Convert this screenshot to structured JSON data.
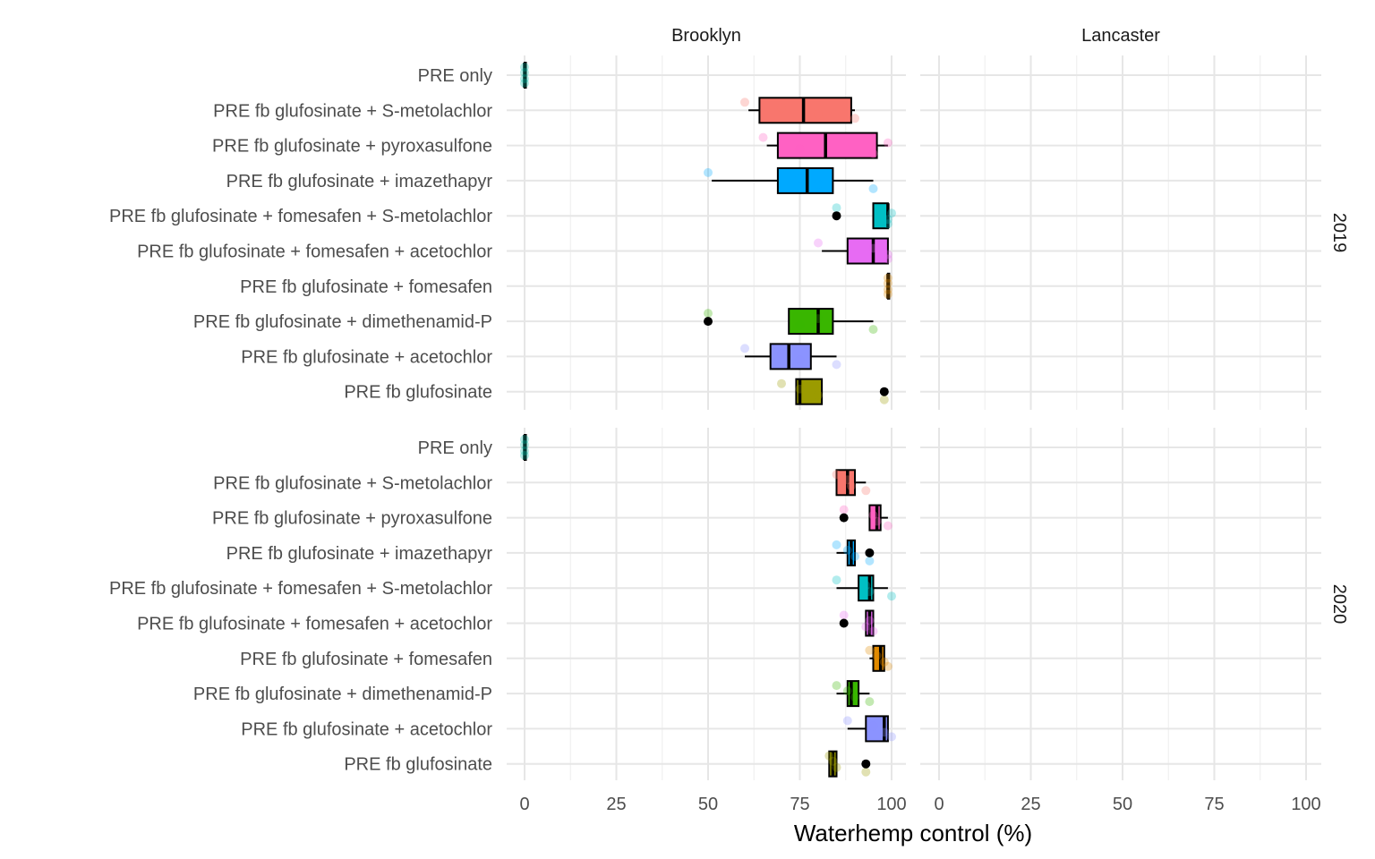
{
  "chart_data": {
    "type": "box",
    "xlabel": "Waterhemp control (%)",
    "xlim": [
      0,
      100
    ],
    "x_ticks": [
      0,
      25,
      50,
      75,
      100
    ],
    "facet_columns": [
      "Brooklyn",
      "Lancaster"
    ],
    "facet_rows": [
      "2019",
      "2020"
    ],
    "categories": [
      "PRE only",
      "PRE fb glufosinate + S-metolachlor",
      "PRE fb glufosinate + pyroxasulfone",
      "PRE fb glufosinate + imazethapyr",
      "PRE fb glufosinate + fomesafen + S-metolachlor",
      "PRE fb glufosinate + fomesafen + acetochlor",
      "PRE fb glufosinate + fomesafen",
      "PRE fb glufosinate + dimethenamid-P",
      "PRE fb glufosinate + acetochlor",
      "PRE fb glufosinate"
    ],
    "colors": {
      "PRE only": "#00C1A9",
      "PRE fb glufosinate + S-metolachlor": "#F8766D",
      "PRE fb glufosinate + pyroxasulfone": "#FF61C3",
      "PRE fb glufosinate + imazethapyr": "#00A9FF",
      "PRE fb glufosinate + fomesafen + S-metolachlor": "#00BFC4",
      "PRE fb glufosinate + fomesafen + acetochlor": "#E76BF3",
      "PRE fb glufosinate + fomesafen": "#E18A00",
      "PRE fb glufosinate + dimethenamid-P": "#39B600",
      "PRE fb glufosinate + acetochlor": "#8B93FF",
      "PRE fb glufosinate": "#9B9B00"
    },
    "panels": [
      {
        "location": "Brooklyn",
        "year": "2019",
        "boxes": [
          {
            "category": "PRE only",
            "min": 0,
            "q1": 0,
            "median": 0,
            "q3": 0,
            "max": 0,
            "outliers": [],
            "points": [
              0,
              0,
              0,
              0
            ]
          },
          {
            "category": "PRE fb glufosinate + S-metolachlor",
            "min": 61,
            "q1": 64,
            "median": 76,
            "q3": 89,
            "max": 90,
            "outliers": [],
            "points": [
              60,
              90,
              70,
              80
            ]
          },
          {
            "category": "PRE fb glufosinate + pyroxasulfone",
            "min": 66,
            "q1": 69,
            "median": 82,
            "q3": 96,
            "max": 99,
            "outliers": [],
            "points": [
              65,
              95,
              99,
              75
            ]
          },
          {
            "category": "PRE fb glufosinate + imazethapyr",
            "min": 51,
            "q1": 69,
            "median": 77,
            "q3": 84,
            "max": 95,
            "outliers": [],
            "points": [
              50,
              95,
              75,
              80
            ]
          },
          {
            "category": "PRE fb glufosinate + fomesafen + S-metolachlor",
            "min": 95,
            "q1": 95,
            "median": 99,
            "q3": 99,
            "max": 99,
            "outliers": [
              85
            ],
            "points": [
              85,
              99,
              100,
              99
            ]
          },
          {
            "category": "PRE fb glufosinate + fomesafen + acetochlor",
            "min": 81,
            "q1": 88,
            "median": 95,
            "q3": 99,
            "max": 99,
            "outliers": [],
            "points": [
              80,
              99,
              95,
              99
            ]
          },
          {
            "category": "PRE fb glufosinate + fomesafen",
            "min": 99,
            "q1": 99,
            "median": 99,
            "q3": 99,
            "max": 99,
            "outliers": [],
            "points": [
              99,
              99,
              99,
              99
            ]
          },
          {
            "category": "PRE fb glufosinate + dimethenamid-P",
            "min": 72,
            "q1": 72,
            "median": 80,
            "q3": 84,
            "max": 95,
            "outliers": [
              50
            ],
            "points": [
              50,
              95,
              80,
              75
            ]
          },
          {
            "category": "PRE fb glufosinate + acetochlor",
            "min": 60,
            "q1": 67,
            "median": 72,
            "q3": 78,
            "max": 85,
            "outliers": [],
            "points": [
              60,
              85,
              70,
              75
            ]
          },
          {
            "category": "PRE fb glufosinate",
            "min": 74,
            "q1": 74,
            "median": 75,
            "q3": 81,
            "max": 81,
            "outliers": [
              98
            ],
            "points": [
              70,
              98,
              75,
              80
            ]
          }
        ]
      },
      {
        "location": "Brooklyn",
        "year": "2020",
        "boxes": [
          {
            "category": "PRE only",
            "min": 0,
            "q1": 0,
            "median": 0,
            "q3": 0,
            "max": 0,
            "outliers": [],
            "points": [
              0,
              0,
              0,
              0
            ]
          },
          {
            "category": "PRE fb glufosinate + S-metolachlor",
            "min": 85,
            "q1": 85,
            "median": 88,
            "q3": 90,
            "max": 93,
            "outliers": [],
            "points": [
              85,
              93,
              88,
              89
            ]
          },
          {
            "category": "PRE fb glufosinate + pyroxasulfone",
            "min": 94,
            "q1": 94,
            "median": 96,
            "q3": 97,
            "max": 99,
            "outliers": [
              87
            ],
            "points": [
              87,
              99,
              95,
              96
            ]
          },
          {
            "category": "PRE fb glufosinate + imazethapyr",
            "min": 85,
            "q1": 88,
            "median": 89,
            "q3": 90,
            "max": 90,
            "outliers": [
              94
            ],
            "points": [
              85,
              94,
              88,
              90
            ]
          },
          {
            "category": "PRE fb glufosinate + fomesafen + S-metolachlor",
            "min": 85,
            "q1": 91,
            "median": 94,
            "q3": 95,
            "max": 99,
            "outliers": [],
            "points": [
              85,
              100,
              93,
              94
            ]
          },
          {
            "category": "PRE fb glufosinate + fomesafen + acetochlor",
            "min": 93,
            "q1": 93,
            "median": 94,
            "q3": 95,
            "max": 95,
            "outliers": [
              87
            ],
            "points": [
              87,
              95,
              94,
              93
            ]
          },
          {
            "category": "PRE fb glufosinate + fomesafen",
            "min": 94,
            "q1": 95,
            "median": 97,
            "q3": 98,
            "max": 98,
            "outliers": [],
            "points": [
              94,
              99,
              96,
              98
            ]
          },
          {
            "category": "PRE fb glufosinate + dimethenamid-P",
            "min": 85,
            "q1": 88,
            "median": 89,
            "q3": 91,
            "max": 94,
            "outliers": [],
            "points": [
              85,
              94,
              88,
              90
            ]
          },
          {
            "category": "PRE fb glufosinate + acetochlor",
            "min": 88,
            "q1": 93,
            "median": 98,
            "q3": 99,
            "max": 99,
            "outliers": [],
            "points": [
              88,
              100,
              95,
              98
            ]
          },
          {
            "category": "PRE fb glufosinate",
            "min": 83,
            "q1": 83,
            "median": 84,
            "q3": 85,
            "max": 85,
            "outliers": [
              93
            ],
            "points": [
              83,
              93,
              84,
              85
            ]
          }
        ]
      },
      {
        "location": "Lancaster",
        "year": "2019",
        "boxes": []
      },
      {
        "location": "Lancaster",
        "year": "2020",
        "boxes": []
      }
    ]
  }
}
